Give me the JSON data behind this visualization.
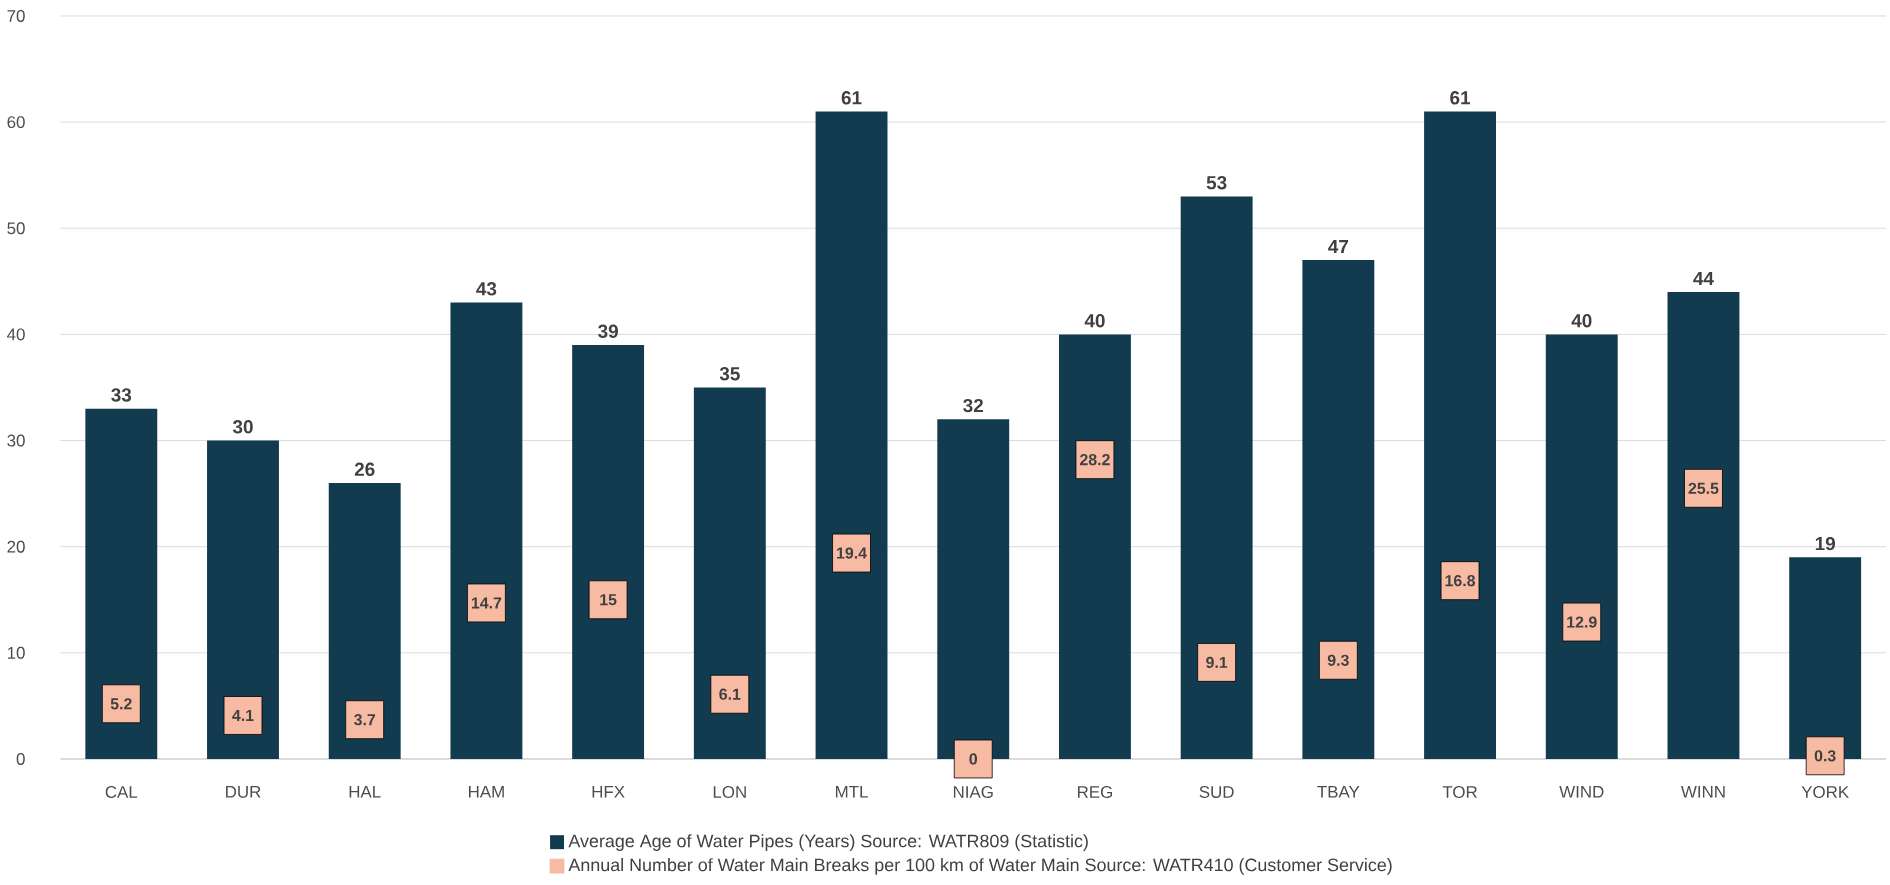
{
  "chart_data": {
    "type": "bar",
    "categories": [
      "CAL",
      "DUR",
      "HAL",
      "HAM",
      "HFX",
      "LON",
      "MTL",
      "NIAG",
      "REG",
      "SUD",
      "TBAY",
      "TOR",
      "WIND",
      "WINN",
      "YORK"
    ],
    "series": [
      {
        "name": "Average Age of Water Pipes (Years) Source: WATR809 (Statistic)",
        "color": "#123b50",
        "values": [
          33,
          30,
          26,
          43,
          39,
          35,
          61,
          32,
          40,
          53,
          47,
          61,
          40,
          44,
          19
        ]
      },
      {
        "name": "Annual Number of Water Main Breaks per 100 km of Water Main Source: WATR410 (Customer Service)",
        "type": "scatter",
        "marker": "square",
        "color": "#f7bba3",
        "values": [
          5.2,
          4.1,
          3.7,
          14.7,
          15,
          6.1,
          19.4,
          0,
          28.2,
          9.1,
          9.3,
          16.8,
          12.9,
          25.5,
          0.3
        ]
      }
    ],
    "ylim": [
      0,
      70
    ],
    "yticks": [
      0,
      10,
      20,
      30,
      40,
      50,
      60,
      70
    ],
    "grid": "y",
    "legend": "bottom",
    "data_labels": true
  }
}
